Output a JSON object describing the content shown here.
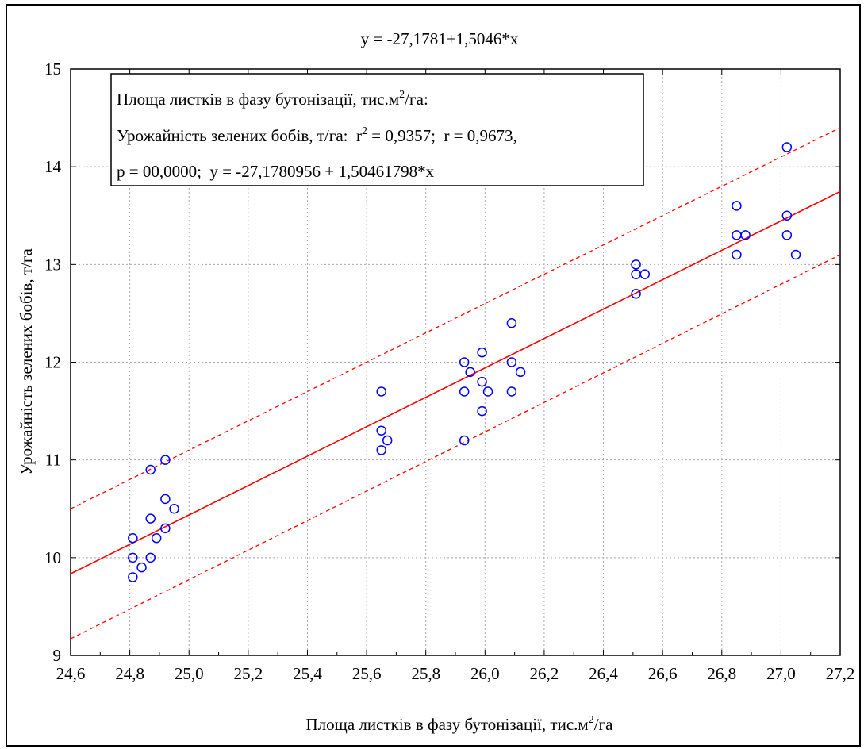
{
  "chart_data": {
    "type": "scatter",
    "title": "y = -27,1781+1,5046*x",
    "xlabel": "Площа листків в фазу бутонізації, тис.м",
    "xlabel_sup": "2",
    "xlabel_tail": "/га",
    "ylabel": "Урожайність зелених бобів, т/га",
    "xlim": [
      24.6,
      27.2
    ],
    "ylim": [
      9,
      15
    ],
    "xticks": [
      "24,6",
      "24,8",
      "25,0",
      "25,2",
      "25,4",
      "25,6",
      "25,8",
      "26,0",
      "26,2",
      "26,4",
      "26,6",
      "26,8",
      "27,0",
      "27,2"
    ],
    "yticks": [
      "9",
      "10",
      "11",
      "12",
      "13",
      "14",
      "15"
    ],
    "grid": true,
    "regression": {
      "intercept": -27.1781,
      "slope": 1.5046,
      "color": "#ff0000"
    },
    "confidence_band": {
      "lower_left": 9.17,
      "lower_right": 13.1,
      "upper_left": 10.5,
      "upper_right": 14.4,
      "color": "#ff0000"
    },
    "point_color": "#0000ff",
    "points": [
      {
        "x": 24.81,
        "y": 10.2
      },
      {
        "x": 24.81,
        "y": 10.0
      },
      {
        "x": 24.81,
        "y": 9.8
      },
      {
        "x": 24.84,
        "y": 9.9
      },
      {
        "x": 24.87,
        "y": 10.9
      },
      {
        "x": 24.87,
        "y": 10.4
      },
      {
        "x": 24.87,
        "y": 10.0
      },
      {
        "x": 24.89,
        "y": 10.2
      },
      {
        "x": 24.92,
        "y": 11.0
      },
      {
        "x": 24.92,
        "y": 10.6
      },
      {
        "x": 24.92,
        "y": 10.3
      },
      {
        "x": 24.95,
        "y": 10.5
      },
      {
        "x": 25.65,
        "y": 11.7
      },
      {
        "x": 25.65,
        "y": 11.3
      },
      {
        "x": 25.65,
        "y": 11.1
      },
      {
        "x": 25.67,
        "y": 11.2
      },
      {
        "x": 25.93,
        "y": 12.0
      },
      {
        "x": 25.93,
        "y": 11.7
      },
      {
        "x": 25.93,
        "y": 11.2
      },
      {
        "x": 25.95,
        "y": 11.9
      },
      {
        "x": 25.99,
        "y": 12.1
      },
      {
        "x": 25.99,
        "y": 11.8
      },
      {
        "x": 25.99,
        "y": 11.5
      },
      {
        "x": 26.01,
        "y": 11.7
      },
      {
        "x": 26.09,
        "y": 12.4
      },
      {
        "x": 26.09,
        "y": 12.0
      },
      {
        "x": 26.09,
        "y": 11.7
      },
      {
        "x": 26.12,
        "y": 11.9
      },
      {
        "x": 26.51,
        "y": 13.0
      },
      {
        "x": 26.51,
        "y": 12.9
      },
      {
        "x": 26.51,
        "y": 12.7
      },
      {
        "x": 26.54,
        "y": 12.9
      },
      {
        "x": 26.85,
        "y": 13.6
      },
      {
        "x": 26.85,
        "y": 13.3
      },
      {
        "x": 26.85,
        "y": 13.1
      },
      {
        "x": 26.88,
        "y": 13.3
      },
      {
        "x": 27.02,
        "y": 14.2
      },
      {
        "x": 27.02,
        "y": 13.5
      },
      {
        "x": 27.02,
        "y": 13.3
      },
      {
        "x": 27.05,
        "y": 13.1
      }
    ],
    "legend": {
      "placement": "top-left",
      "line1": "Площа листків в фазу бутонізації, тис.м",
      "line1_sup": "2",
      "line1_tail": "/га:",
      "line2_a": "Урожайність зелених бобів, т/га:  r",
      "line2_sup": "2",
      "line2_b": " = 0,9357;  r = 0,9673,",
      "line3": "p = 00,0000;  y = -27,1780956 + 1,50461798*x"
    }
  }
}
